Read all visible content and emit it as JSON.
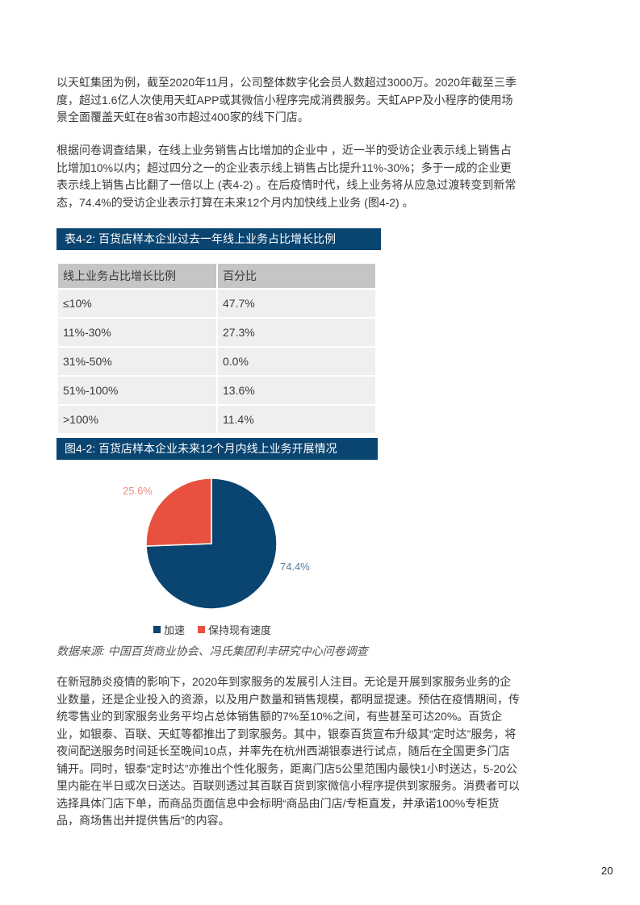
{
  "paragraphs": [
    "以天虹集团为例，截至2020年11月，公司整体数字化会员人数超过3000万。2020年截至三季度，超过1.6亿人次使用天虹APP或其微信小程序完成消费服务。天虹APP及小程序的使用场景全面覆盖天虹在8省30市超过400家的线下门店。",
    "根据问卷调查结果，在线上业务销售占比增加的企业中 ，近一半的受访企业表示线上销售占比增加10%以内；超过四分之一的企业表示线上销售占比提升11%-30%；多于一成的企业更表示线上销售占比翻了一倍以上 (表4-2) 。在后疫情时代，线上业务将从应急过渡转变到新常态，74.4%的受访企业表示打算在未来12个月内加快线上业务 (图4-2) 。",
    "在新冠肺炎疫情的影响下，2020年到家服务的发展引人注目。无论是开展到家服务业务的企业数量，还是企业投入的资源，以及用户数量和销售规模，都明显提速。预估在疫情期间，传统零售业的到家服务业务平均占总体销售额的7%至10%之间，有些甚至可达20%。百货企业，如银泰、百联、天虹等都推出了到家服务。其中，银泰百货宣布升级其“定时达”服务，将夜间配送服务时间延长至晚间10点，并率先在杭州西湖银泰进行试点，随后在全国更多门店铺开。同时，银泰“定时达”亦推出个性化服务，距离门店5公里范围内最快1小时送达，5-20公里内能在半日或次日送达。百联则透过其百联百货到家微信小程序提供到家服务。消费者可以选择具体门店下单，而商品页面信息中会标明“商品由门店/专柜直发，并承诺100%专柜货品，商场售出并提供售后”的内容。"
  ],
  "table": {
    "title": "表4-2:   百货店样本企业过去一年线上业务占比增长比例",
    "headers": [
      "线上业务占比增长比例",
      "百分比"
    ],
    "rows": [
      [
        "≤10%",
        "47.7%"
      ],
      [
        "11%-30%",
        "27.3%"
      ],
      [
        "31%-50%",
        "0.0%"
      ],
      [
        "51%-100%",
        "13.6%"
      ],
      [
        ">100%",
        "11.4%"
      ]
    ]
  },
  "figure": {
    "title": "图4-2: 百货店样本企业未来12个月内线上业务开展情况",
    "source": "数据来源: 中国百货商业协会、冯氏集团利丰研究中心问卷调查"
  },
  "chart_data": {
    "type": "pie",
    "title": "",
    "slices": [
      {
        "name": "加速",
        "value": 74.4,
        "label": "74.4%",
        "color": "#0a4470",
        "label_color": "#5a7d9c"
      },
      {
        "name": "保持现有速度",
        "value": 25.6,
        "label": "25.6%",
        "color": "#e8503f",
        "label_color": "#ef8a7f"
      }
    ],
    "legend_placement": "bottom"
  },
  "page_number": "20"
}
